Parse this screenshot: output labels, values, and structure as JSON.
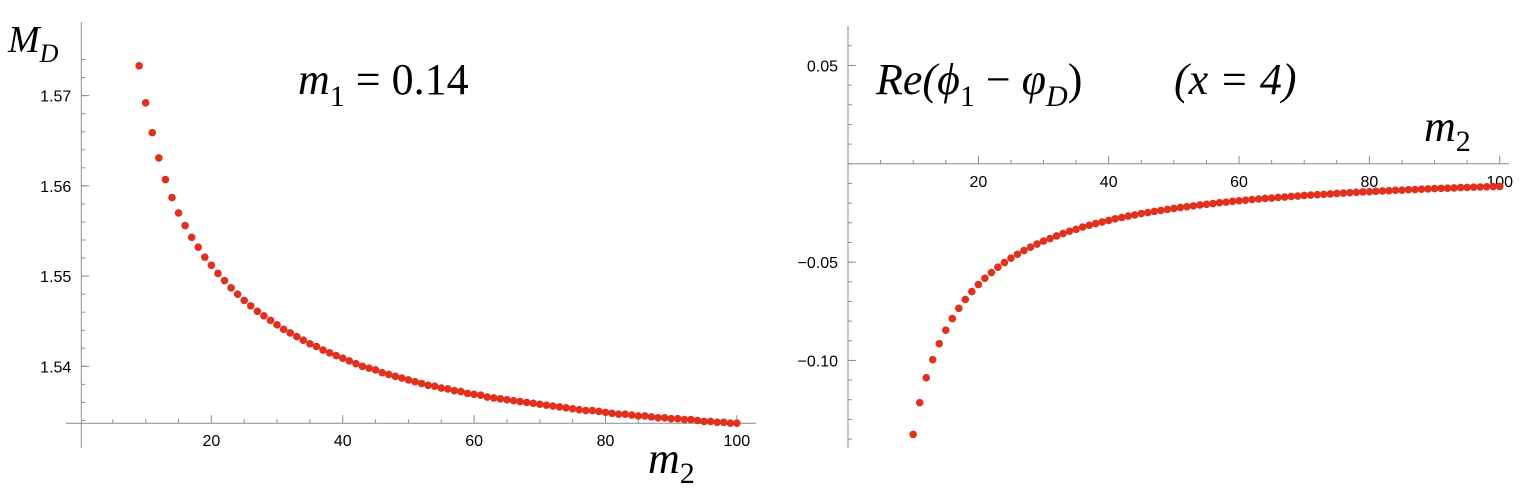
{
  "chart_data": [
    {
      "type": "scatter",
      "ylabel": "M_D",
      "ylabel_main": "M",
      "ylabel_sub": "D",
      "xlabel": "m_2",
      "xlabel_main": "m",
      "xlabel_sub": "2",
      "annotation": "m_1 = 0.14",
      "annotation_main": "m",
      "annotation_sub": "1",
      "annotation_rest": " = 0.14",
      "x_ticks": [
        20,
        40,
        60,
        80,
        100
      ],
      "y_ticks": [
        1.54,
        1.55,
        1.56,
        1.57
      ],
      "y_tick_labels": [
        "1.54",
        "1.55",
        "1.56",
        "1.57"
      ],
      "xlim": [
        0,
        102
      ],
      "ylim": [
        1.5335,
        1.5755
      ],
      "color": "#e0301e",
      "x": [
        9,
        10,
        11,
        12,
        13,
        14,
        15,
        16,
        17,
        18,
        19,
        20,
        21,
        22,
        23,
        24,
        25,
        26,
        27,
        28,
        29,
        30,
        31,
        32,
        33,
        34,
        35,
        36,
        37,
        38,
        39,
        40,
        41,
        42,
        43,
        44,
        45,
        46,
        47,
        48,
        49,
        50,
        51,
        52,
        53,
        54,
        55,
        56,
        57,
        58,
        59,
        60,
        61,
        62,
        63,
        64,
        65,
        66,
        67,
        68,
        69,
        70,
        71,
        72,
        73,
        74,
        75,
        76,
        77,
        78,
        79,
        80,
        81,
        82,
        83,
        84,
        85,
        86,
        87,
        88,
        89,
        90,
        91,
        92,
        93,
        94,
        95,
        96,
        97,
        98,
        99,
        100
      ],
      "y": [
        1.5733,
        1.5692,
        1.5659,
        1.5631,
        1.5607,
        1.5587,
        1.557,
        1.5556,
        1.5543,
        1.5532,
        1.5521,
        1.5512,
        1.5503,
        1.5495,
        1.5487,
        1.548,
        1.5473,
        1.5467,
        1.5461,
        1.5456,
        1.5451,
        1.5446,
        1.5441,
        1.5437,
        1.5433,
        1.5429,
        1.5425,
        1.5422,
        1.5418,
        1.5415,
        1.5412,
        1.5409,
        1.5406,
        1.5403,
        1.54,
        1.5398,
        1.5396,
        1.5393,
        1.5391,
        1.5389,
        1.5387,
        1.5385,
        1.5383,
        1.5381,
        1.5379,
        1.5378,
        1.5376,
        1.5375,
        1.5373,
        1.5372,
        1.537,
        1.5369,
        1.5368,
        1.5366,
        1.5365,
        1.5364,
        1.5363,
        1.5362,
        1.5361,
        1.536,
        1.5359,
        1.5358,
        1.5357,
        1.5356,
        1.5355,
        1.5354,
        1.5353,
        1.5352,
        1.5351,
        1.5351,
        1.535,
        1.5349,
        1.5348,
        1.5347,
        1.5347,
        1.5346,
        1.5345,
        1.5345,
        1.5344,
        1.5343,
        1.5343,
        1.5342,
        1.5342,
        1.5341,
        1.5341,
        1.534,
        1.5339,
        1.5339,
        1.5338,
        1.5338,
        1.5337,
        1.5337
      ]
    },
    {
      "type": "scatter",
      "title": "Re(ϕ_1 − φ_D)   (x = 4)",
      "title_main": "Re(",
      "title_phi": "ϕ",
      "title_sub1": "1",
      "title_minus": " − ",
      "title_varphi": "φ",
      "title_subD": "D",
      "title_close": ")",
      "title_cond": "(x = 4)",
      "xlabel": "m_2",
      "xlabel_main": "m",
      "xlabel_sub": "2",
      "x_ticks": [
        20,
        40,
        60,
        80,
        100
      ],
      "y_ticks": [
        -0.1,
        -0.05,
        0.05
      ],
      "y_tick_labels": [
        "−0.10",
        "−0.05",
        "0.05"
      ],
      "xlim": [
        0,
        100.5
      ],
      "ylim": [
        -0.143,
        0.066
      ],
      "color": "#e0301e",
      "x": [
        10,
        11,
        12,
        13,
        14,
        15,
        16,
        17,
        18,
        19,
        20,
        21,
        22,
        23,
        24,
        25,
        26,
        27,
        28,
        29,
        30,
        31,
        32,
        33,
        34,
        35,
        36,
        37,
        38,
        39,
        40,
        41,
        42,
        43,
        44,
        45,
        46,
        47,
        48,
        49,
        50,
        51,
        52,
        53,
        54,
        55,
        56,
        57,
        58,
        59,
        60,
        61,
        62,
        63,
        64,
        65,
        66,
        67,
        68,
        69,
        70,
        71,
        72,
        73,
        74,
        75,
        76,
        77,
        78,
        79,
        80,
        81,
        82,
        83,
        84,
        85,
        86,
        87,
        88,
        89,
        90,
        91,
        92,
        93,
        94,
        95,
        96,
        97,
        98,
        99,
        100
      ],
      "y": [
        -0.1376,
        -0.1215,
        -0.1088,
        -0.0996,
        -0.0915,
        -0.0846,
        -0.0787,
        -0.0735,
        -0.069,
        -0.065,
        -0.0614,
        -0.0582,
        -0.0553,
        -0.0526,
        -0.0502,
        -0.048,
        -0.046,
        -0.0441,
        -0.0424,
        -0.0408,
        -0.0393,
        -0.038,
        -0.0367,
        -0.0355,
        -0.0343,
        -0.0333,
        -0.0322,
        -0.0313,
        -0.0304,
        -0.0296,
        -0.0288,
        -0.028,
        -0.0273,
        -0.0266,
        -0.026,
        -0.0253,
        -0.0248,
        -0.0242,
        -0.0237,
        -0.0232,
        -0.0227,
        -0.0222,
        -0.0218,
        -0.0214,
        -0.0209,
        -0.0206,
        -0.0202,
        -0.0198,
        -0.0195,
        -0.0191,
        -0.0188,
        -0.0185,
        -0.0182,
        -0.0179,
        -0.0176,
        -0.0174,
        -0.0171,
        -0.0169,
        -0.0166,
        -0.0164,
        -0.0161,
        -0.0159,
        -0.0157,
        -0.0155,
        -0.0153,
        -0.0151,
        -0.0149,
        -0.0147,
        -0.0145,
        -0.0143,
        -0.0142,
        -0.014,
        -0.0138,
        -0.0137,
        -0.0135,
        -0.0134,
        -0.0132,
        -0.0131,
        -0.0129,
        -0.0128,
        -0.0126,
        -0.0125,
        -0.0124,
        -0.0123,
        -0.0121,
        -0.012,
        -0.0119,
        -0.0118,
        -0.0117,
        -0.0116,
        -0.0115
      ]
    }
  ]
}
